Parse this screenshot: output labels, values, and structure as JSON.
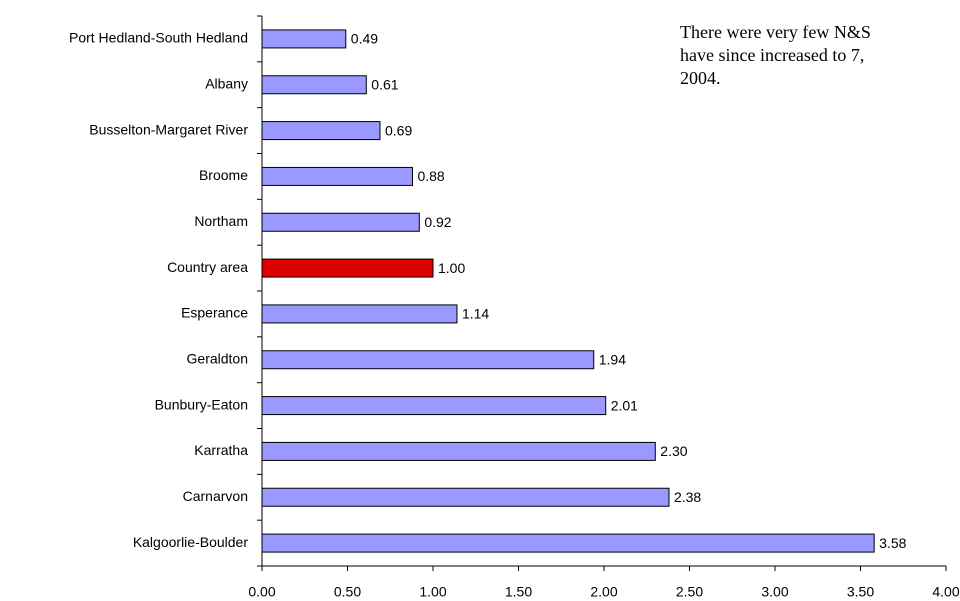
{
  "chart_data": {
    "type": "bar",
    "orientation": "horizontal",
    "categories": [
      "Port Hedland-South Hedland",
      "Albany",
      "Busselton-Margaret River",
      "Broome",
      "Northam",
      "Country area",
      "Esperance",
      "Geraldton",
      "Bunbury-Eaton",
      "Karratha",
      "Carnarvon",
      "Kalgoorlie-Boulder"
    ],
    "values": [
      0.49,
      0.61,
      0.69,
      0.88,
      0.92,
      1.0,
      1.14,
      1.94,
      2.01,
      2.3,
      2.38,
      3.58
    ],
    "value_labels": [
      "0.49",
      "0.61",
      "0.69",
      "0.88",
      "0.92",
      "1.00",
      "1.14",
      "1.94",
      "2.01",
      "2.30",
      "2.38",
      "3.58"
    ],
    "colors": [
      "#9999ff",
      "#9999ff",
      "#9999ff",
      "#9999ff",
      "#9999ff",
      "#dd0000",
      "#9999ff",
      "#9999ff",
      "#9999ff",
      "#9999ff",
      "#9999ff",
      "#9999ff"
    ],
    "xlim": [
      0,
      4
    ],
    "xticks": [
      {
        "value": 0,
        "label": "0.00"
      },
      {
        "value": 0.5,
        "label": "0.50"
      },
      {
        "value": 1,
        "label": "1.00"
      },
      {
        "value": 1.5,
        "label": "1.50"
      },
      {
        "value": 2,
        "label": "2.00"
      },
      {
        "value": 2.5,
        "label": "2.50"
      },
      {
        "value": 3,
        "label": "3.00"
      },
      {
        "value": 3.5,
        "label": "3.50"
      },
      {
        "value": 4,
        "label": "4.00"
      }
    ],
    "annotations": [
      "There were very few N&S",
      "have since increased to 7,",
      "2004."
    ]
  }
}
